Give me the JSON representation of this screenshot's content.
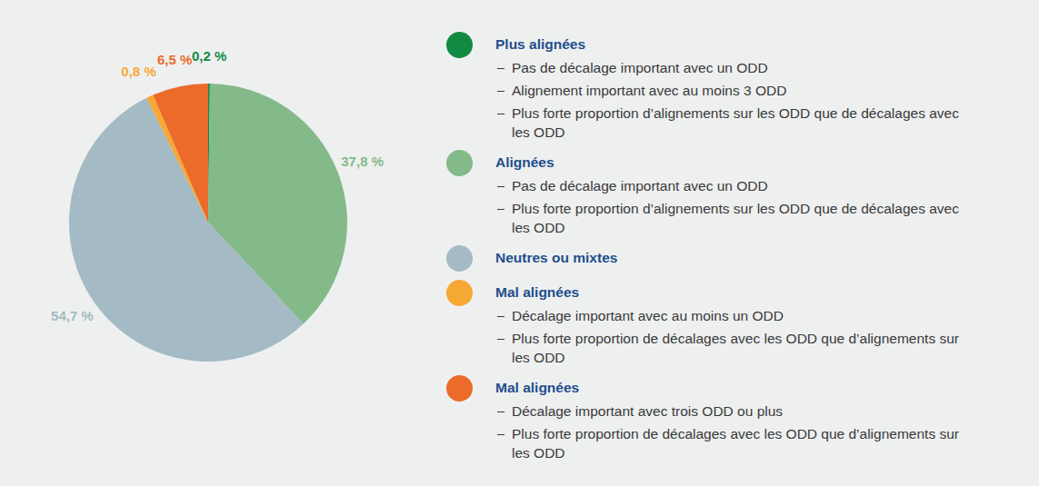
{
  "chart_data": {
    "type": "pie",
    "categories": [
      "Plus alignées",
      "Alignées",
      "Neutres ou mixtes",
      "Mal alignées",
      "Mal alignées"
    ],
    "values": [
      0.2,
      37.8,
      54.7,
      0.8,
      6.5
    ],
    "value_labels": [
      "0,2 %",
      "37,8 %",
      "54,7 %",
      "0,8 %",
      "6,5 %"
    ],
    "colors": [
      "#138a44",
      "#84b98a",
      "#a4bac4",
      "#f6a834",
      "#ec6b2a"
    ],
    "data_labels": true,
    "descriptions": [
      [
        "Pas de décalage important avec un ODD",
        "Alignement important avec au moins 3 ODD",
        "Plus forte proportion d’alignements sur les ODD que de décalages avec les ODD"
      ],
      [
        "Pas de décalage important avec un ODD",
        "Plus forte proportion d’alignements sur les ODD que de décalages avec les ODD"
      ],
      [],
      [
        "Décalage important avec au moins un ODD",
        "Plus forte proportion de décalages avec les ODD que d’alignements sur les ODD"
      ],
      [
        "Décalage important avec trois ODD ou plus",
        "Plus forte proportion de décalages avec les ODD que d’alignements sur les ODD"
      ]
    ]
  }
}
